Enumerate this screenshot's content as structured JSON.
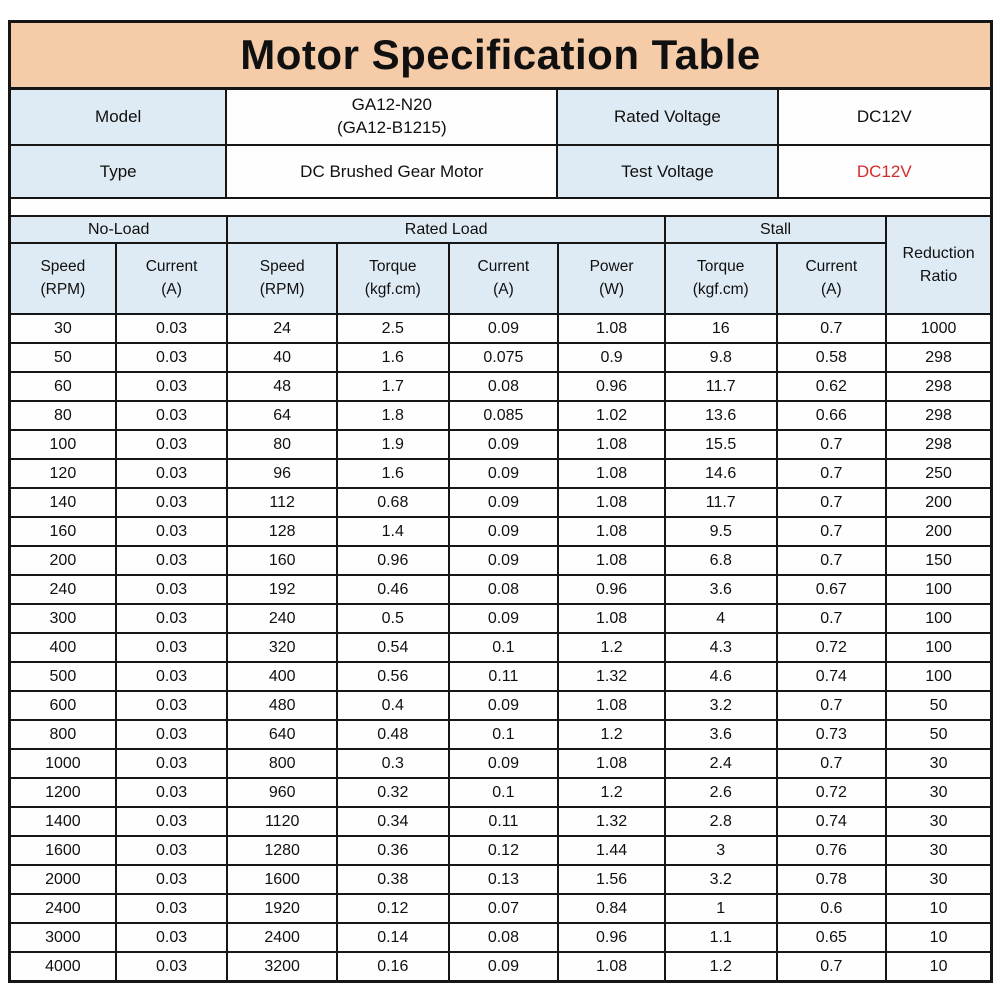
{
  "title": "Motor Specification Table",
  "colors": {
    "title_bg": "#F6CBA8",
    "header_bg": "#DEEBF4",
    "border": "#161616",
    "test_voltage_red": "#D22B2B"
  },
  "info": {
    "model_label": "Model",
    "model_value_line1": "GA12-N20",
    "model_value_line2": "(GA12-B1215)",
    "rated_voltage_label": "Rated Voltage",
    "rated_voltage_value": "DC12V",
    "type_label": "Type",
    "type_value": "DC Brushed Gear Motor",
    "test_voltage_label": "Test Voltage",
    "test_voltage_value": "DC12V"
  },
  "table": {
    "groups": [
      {
        "label": "No-Load",
        "span": 2
      },
      {
        "label": "Rated Load",
        "span": 4
      },
      {
        "label": "Stall",
        "span": 2
      }
    ],
    "reduction_ratio": {
      "line1": "Reduction",
      "line2": "Ratio"
    },
    "columns": [
      {
        "line1": "Speed",
        "line2": "(RPM)"
      },
      {
        "line1": "Current",
        "line2": "(A)"
      },
      {
        "line1": "Speed",
        "line2": "(RPM)"
      },
      {
        "line1": "Torque",
        "line2": "(kgf.cm)"
      },
      {
        "line1": "Current",
        "line2": "(A)"
      },
      {
        "line1": "Power",
        "line2": "(W)"
      },
      {
        "line1": "Torque",
        "line2": "(kgf.cm)"
      },
      {
        "line1": "Current",
        "line2": "(A)"
      }
    ],
    "rows": [
      [
        "30",
        "0.03",
        "24",
        "2.5",
        "0.09",
        "1.08",
        "16",
        "0.7",
        "1000"
      ],
      [
        "50",
        "0.03",
        "40",
        "1.6",
        "0.075",
        "0.9",
        "9.8",
        "0.58",
        "298"
      ],
      [
        "60",
        "0.03",
        "48",
        "1.7",
        "0.08",
        "0.96",
        "11.7",
        "0.62",
        "298"
      ],
      [
        "80",
        "0.03",
        "64",
        "1.8",
        "0.085",
        "1.02",
        "13.6",
        "0.66",
        "298"
      ],
      [
        "100",
        "0.03",
        "80",
        "1.9",
        "0.09",
        "1.08",
        "15.5",
        "0.7",
        "298"
      ],
      [
        "120",
        "0.03",
        "96",
        "1.6",
        "0.09",
        "1.08",
        "14.6",
        "0.7",
        "250"
      ],
      [
        "140",
        "0.03",
        "112",
        "0.68",
        "0.09",
        "1.08",
        "11.7",
        "0.7",
        "200"
      ],
      [
        "160",
        "0.03",
        "128",
        "1.4",
        "0.09",
        "1.08",
        "9.5",
        "0.7",
        "200"
      ],
      [
        "200",
        "0.03",
        "160",
        "0.96",
        "0.09",
        "1.08",
        "6.8",
        "0.7",
        "150"
      ],
      [
        "240",
        "0.03",
        "192",
        "0.46",
        "0.08",
        "0.96",
        "3.6",
        "0.67",
        "100"
      ],
      [
        "300",
        "0.03",
        "240",
        "0.5",
        "0.09",
        "1.08",
        "4",
        "0.7",
        "100"
      ],
      [
        "400",
        "0.03",
        "320",
        "0.54",
        "0.1",
        "1.2",
        "4.3",
        "0.72",
        "100"
      ],
      [
        "500",
        "0.03",
        "400",
        "0.56",
        "0.11",
        "1.32",
        "4.6",
        "0.74",
        "100"
      ],
      [
        "600",
        "0.03",
        "480",
        "0.4",
        "0.09",
        "1.08",
        "3.2",
        "0.7",
        "50"
      ],
      [
        "800",
        "0.03",
        "640",
        "0.48",
        "0.1",
        "1.2",
        "3.6",
        "0.73",
        "50"
      ],
      [
        "1000",
        "0.03",
        "800",
        "0.3",
        "0.09",
        "1.08",
        "2.4",
        "0.7",
        "30"
      ],
      [
        "1200",
        "0.03",
        "960",
        "0.32",
        "0.1",
        "1.2",
        "2.6",
        "0.72",
        "30"
      ],
      [
        "1400",
        "0.03",
        "1120",
        "0.34",
        "0.11",
        "1.32",
        "2.8",
        "0.74",
        "30"
      ],
      [
        "1600",
        "0.03",
        "1280",
        "0.36",
        "0.12",
        "1.44",
        "3",
        "0.76",
        "30"
      ],
      [
        "2000",
        "0.03",
        "1600",
        "0.38",
        "0.13",
        "1.56",
        "3.2",
        "0.78",
        "30"
      ],
      [
        "2400",
        "0.03",
        "1920",
        "0.12",
        "0.07",
        "0.84",
        "1",
        "0.6",
        "10"
      ],
      [
        "3000",
        "0.03",
        "2400",
        "0.14",
        "0.08",
        "0.96",
        "1.1",
        "0.65",
        "10"
      ],
      [
        "4000",
        "0.03",
        "3200",
        "0.16",
        "0.09",
        "1.08",
        "1.2",
        "0.7",
        "10"
      ]
    ]
  }
}
